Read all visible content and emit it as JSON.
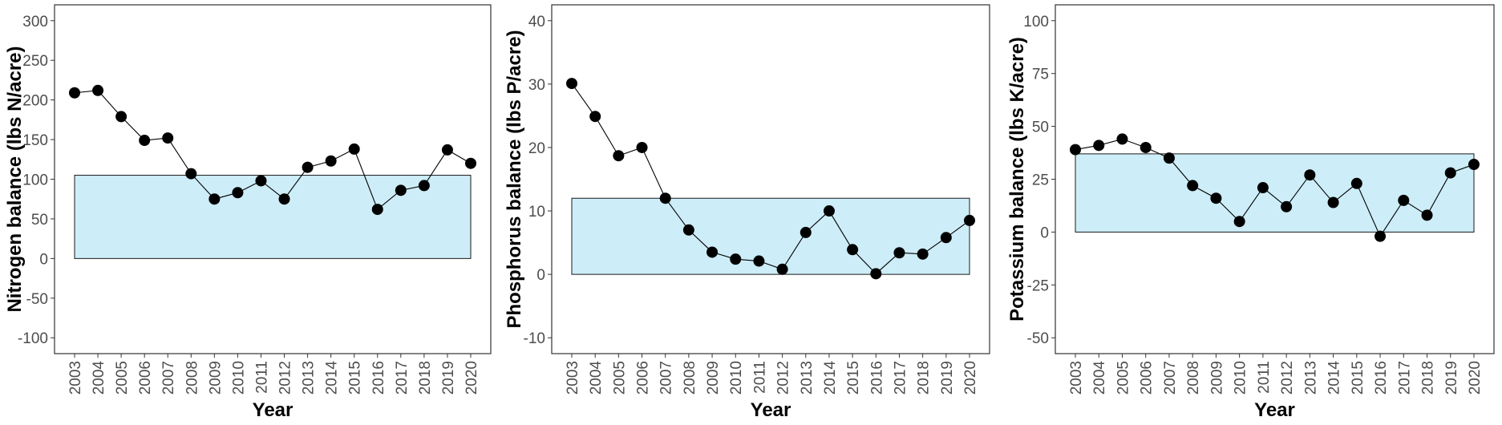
{
  "chart_data": [
    {
      "type": "line",
      "xlabel": "Year",
      "ylabel": "Nitrogen balance (lbs N/acre)",
      "ylim": [
        -120,
        320
      ],
      "yticks": [
        -100,
        -50,
        0,
        50,
        100,
        150,
        200,
        250,
        300
      ],
      "target_range": [
        0,
        105
      ],
      "categories": [
        "2003",
        "2004",
        "2005",
        "2006",
        "2007",
        "2008",
        "2009",
        "2010",
        "2011",
        "2012",
        "2013",
        "2014",
        "2015",
        "2016",
        "2017",
        "2018",
        "2019",
        "2020"
      ],
      "series": [
        {
          "values": [
            209,
            212,
            179,
            149,
            152,
            107,
            75,
            83,
            98,
            75,
            115,
            123,
            138,
            62,
            86,
            92,
            137,
            120
          ]
        }
      ]
    },
    {
      "type": "line",
      "xlabel": "Year",
      "ylabel": "Phosphorus balance (lbs P/acre)",
      "ylim": [
        -12.5,
        42.5
      ],
      "yticks": [
        -10,
        0,
        10,
        20,
        30,
        40
      ],
      "target_range": [
        0,
        12
      ],
      "categories": [
        "2003",
        "2004",
        "2005",
        "2006",
        "2007",
        "2008",
        "2009",
        "2010",
        "2011",
        "2012",
        "2013",
        "2014",
        "2015",
        "2016",
        "2017",
        "2018",
        "2019",
        "2020"
      ],
      "series": [
        {
          "values": [
            30.1,
            24.9,
            18.7,
            20.0,
            12.0,
            7.0,
            3.5,
            2.4,
            2.1,
            0.8,
            6.6,
            10.0,
            3.9,
            0.1,
            3.4,
            3.2,
            5.8,
            8.5
          ]
        }
      ]
    },
    {
      "type": "line",
      "xlabel": "Year",
      "ylabel": "Potassium balance (lbs K/acre)",
      "ylim": [
        -57.5,
        107.5
      ],
      "yticks": [
        -50,
        -25,
        0,
        25,
        50,
        75,
        100
      ],
      "target_range": [
        0,
        37
      ],
      "categories": [
        "2003",
        "2004",
        "2005",
        "2006",
        "2007",
        "2008",
        "2009",
        "2010",
        "2011",
        "2012",
        "2013",
        "2014",
        "2015",
        "2016",
        "2017",
        "2018",
        "2019",
        "2020"
      ],
      "series": [
        {
          "values": [
            39,
            41,
            44,
            40,
            35,
            22,
            16,
            5,
            21,
            12,
            27,
            14,
            23,
            -2,
            15,
            8,
            28,
            32
          ]
        }
      ]
    }
  ],
  "colors": {
    "target_fill": "#cdedf8",
    "line": "#000000",
    "point": "#000000",
    "frame": "#333333",
    "tick_text": "#4d4d4d"
  }
}
